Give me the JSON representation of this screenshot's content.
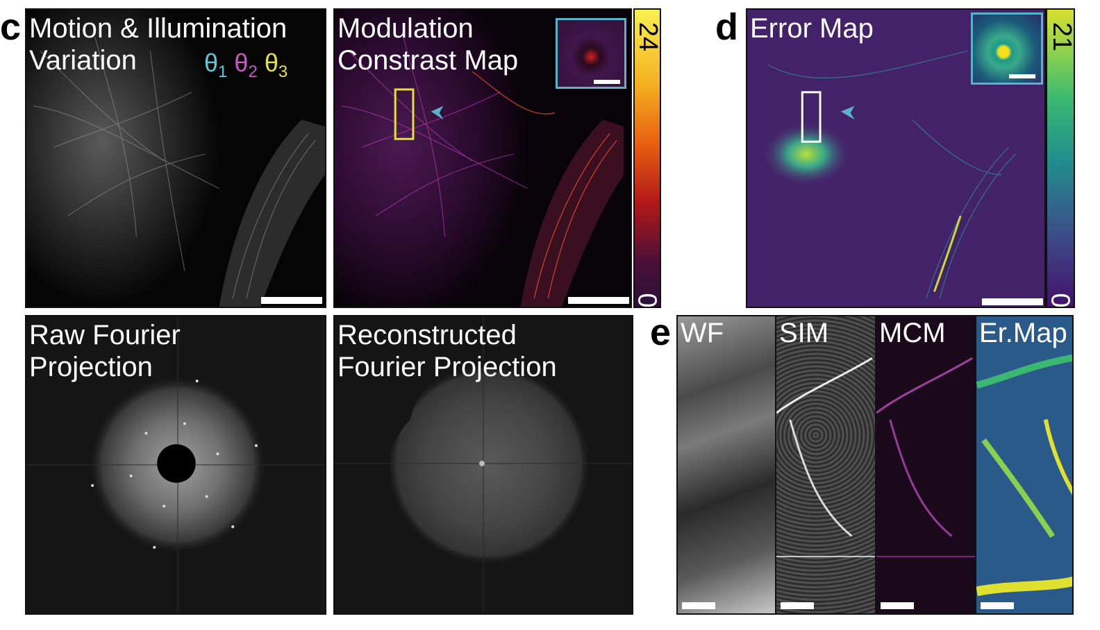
{
  "labels": {
    "c": "c",
    "d": "d",
    "e": "e"
  },
  "panel_motion": {
    "title": "Motion & Illumination\nVariation",
    "theta1": "θ",
    "theta1_sub": "1",
    "theta2": "θ",
    "theta2_sub": "2",
    "theta3": "θ",
    "theta3_sub": "3",
    "colors": {
      "theta1": "#5ec8d8",
      "theta2": "#c659c2",
      "theta3": "#e8e03a"
    }
  },
  "panel_mcm": {
    "title": "Modulation\nConstrast Map",
    "colorbar_max": "24",
    "colorbar_min": "0"
  },
  "panel_error": {
    "title": "Error Map",
    "colorbar_max": "21",
    "colorbar_min": "0"
  },
  "panel_raw_fourier": {
    "title": "Raw Fourier\nProjection"
  },
  "panel_recon_fourier": {
    "title": "Reconstructed\nFourier Projection"
  },
  "panel_e": {
    "strips": [
      "WF",
      "SIM",
      "MCM",
      "Er.Map"
    ]
  }
}
